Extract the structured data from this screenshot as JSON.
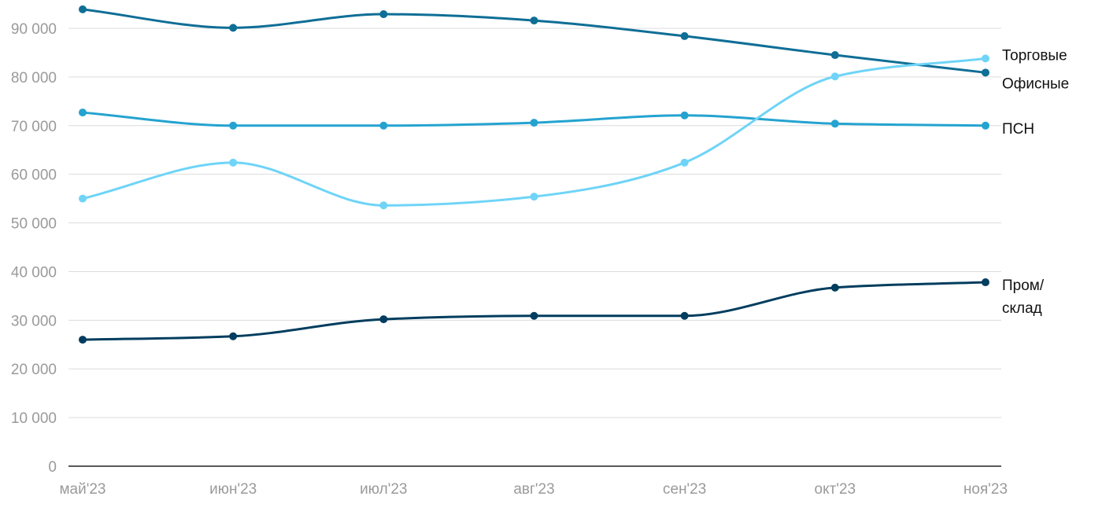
{
  "chart_data": {
    "type": "line",
    "categories": [
      "май'23",
      "июн'23",
      "июл'23",
      "авг'23",
      "сен'23",
      "окт'23",
      "ноя'23"
    ],
    "series": [
      {
        "name": "Офисные",
        "color": "#0f6e96",
        "values": [
          93900,
          90100,
          92900,
          91600,
          88400,
          84500,
          80900
        ]
      },
      {
        "name": "ПСН",
        "color": "#24a3d0",
        "values": [
          72700,
          70000,
          70000,
          70600,
          72100,
          70400,
          70000
        ]
      },
      {
        "name": "Торговые",
        "color": "#6fd4f7",
        "values": [
          55000,
          62400,
          53600,
          55400,
          62400,
          80100,
          83800
        ]
      },
      {
        "name": "Пром/склад",
        "color": "#003d5e",
        "values": [
          26000,
          26700,
          30200,
          30900,
          30900,
          36700,
          37800
        ]
      }
    ],
    "ylim": [
      0,
      90000
    ],
    "yticks": [
      0,
      {
        "value": 10000,
        "label": "10 000"
      },
      {
        "value": 20000,
        "label": "20 000"
      },
      {
        "value": 30000,
        "label": "30 000"
      },
      {
        "value": 40000,
        "label": "40 000"
      },
      {
        "value": 50000,
        "label": "50 000"
      },
      {
        "value": 60000,
        "label": "60 000"
      },
      {
        "value": 70000,
        "label": "70 000"
      },
      {
        "value": 80000,
        "label": "80 000"
      },
      {
        "value": 90000,
        "label": "90 000"
      }
    ],
    "grid": true
  }
}
